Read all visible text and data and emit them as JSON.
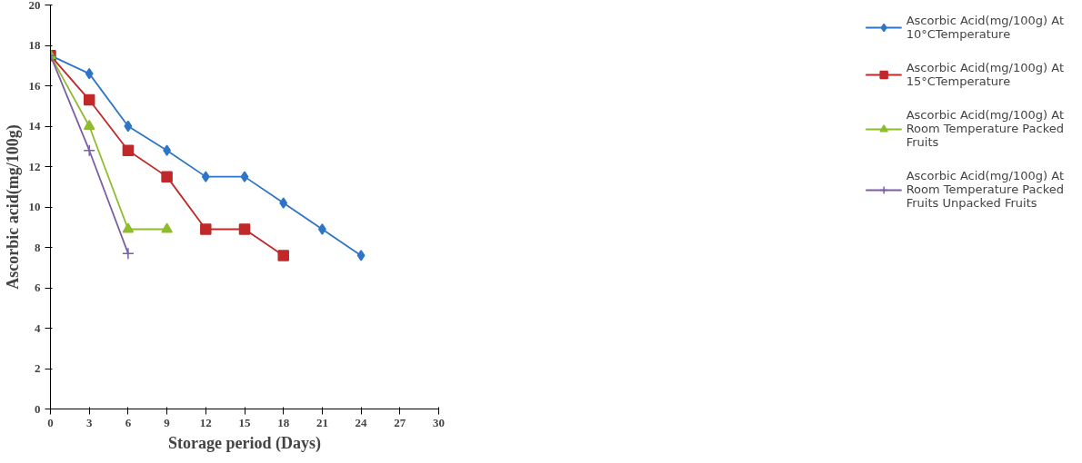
{
  "chart_data": {
    "type": "line",
    "xlabel": "Storage period (Days)",
    "ylabel": "Ascorbic acid(mg/100g)",
    "xlim": [
      0,
      30
    ],
    "xticks": [
      0,
      3,
      6,
      9,
      12,
      15,
      18,
      21,
      24,
      27,
      30
    ],
    "ylim": [
      0,
      20
    ],
    "yticks": [
      0,
      2,
      4,
      6,
      8,
      10,
      12,
      14,
      16,
      18,
      20
    ],
    "grid": false,
    "legend": "right",
    "series": [
      {
        "name": "Ascorbic Acid(mg/100g) At 10°CTemperature",
        "color": "#2e75c8",
        "marker": "diamond",
        "x": [
          0,
          3,
          6,
          9,
          12,
          15,
          18,
          21,
          24
        ],
        "values": [
          17.5,
          16.6,
          14.0,
          12.8,
          11.5,
          11.5,
          10.2,
          8.9,
          7.6
        ]
      },
      {
        "name": "Ascorbic Acid(mg/100g) At 15°CTemperature",
        "color": "#c0282a",
        "marker": "square",
        "x": [
          0,
          3,
          6,
          9,
          12,
          15,
          18
        ],
        "values": [
          17.5,
          15.3,
          12.8,
          11.5,
          8.9,
          8.9,
          7.6
        ]
      },
      {
        "name": "Ascorbic Acid(mg/100g) At Room Temperature Packed Fruits",
        "color": "#8fbc2e",
        "marker": "triangle",
        "x": [
          0,
          3,
          6,
          9
        ],
        "values": [
          17.5,
          14.0,
          8.9,
          8.9
        ]
      },
      {
        "name": "Ascorbic Acid(mg/100g) At Room Temperature Packed Fruits Unpacked Fruits",
        "color": "#7b5ea8",
        "marker": "cross",
        "x": [
          0,
          3,
          6
        ],
        "values": [
          17.5,
          12.8,
          7.7
        ]
      }
    ]
  }
}
